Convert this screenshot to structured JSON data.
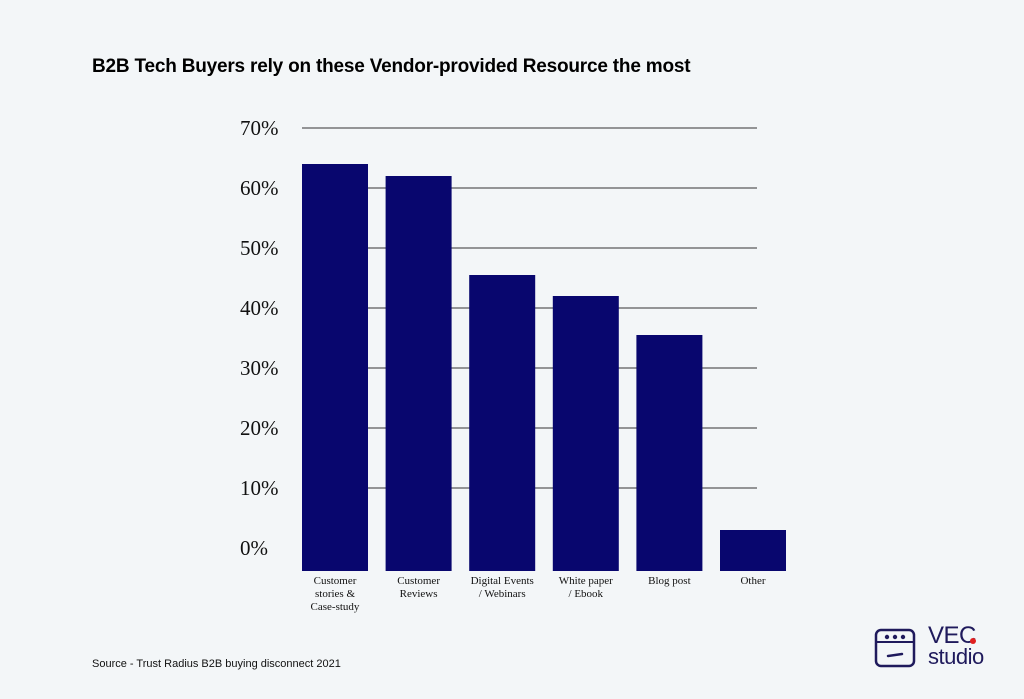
{
  "chart_data": {
    "type": "bar",
    "title": "B2B Tech Buyers rely on these Vendor-provided Resource the most",
    "categories": [
      [
        "Customer",
        "stories &",
        "Case-study"
      ],
      [
        "Customer",
        "Reviews"
      ],
      [
        "Digital Events",
        "/ Webinars"
      ],
      [
        "White paper",
        "/ Ebook"
      ],
      [
        "Blog post"
      ],
      [
        "Other"
      ]
    ],
    "values": [
      64,
      62,
      45.5,
      42,
      35.5,
      3
    ],
    "ylim": [
      0,
      70
    ],
    "yticks": [
      "0%",
      "10%",
      "20%",
      "30%",
      "40%",
      "50%",
      "60%",
      "70%"
    ],
    "grid": true,
    "bar_color": "#08066e",
    "xlabel": "",
    "ylabel": ""
  },
  "footer": {
    "source": "Source - Trust Radius B2B buying disconnect 2021"
  },
  "logo": {
    "line1": "VEC",
    "line2": "studio",
    "color": "#1f1a5c",
    "dot_color": "#e02020",
    "icon": "robot-face-icon"
  }
}
